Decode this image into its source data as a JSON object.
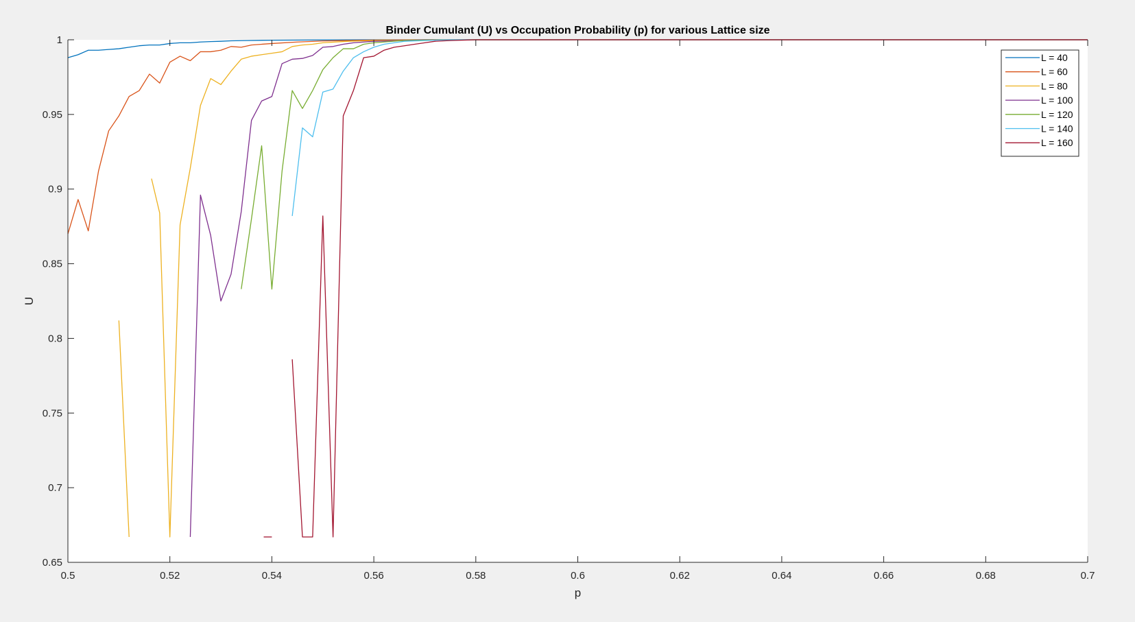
{
  "chart_data": {
    "type": "line",
    "title": "Binder Cumulant (U) vs Occupation Probability (p) for various Lattice size",
    "xlabel": "p",
    "ylabel": "U",
    "xlim": [
      0.5,
      0.7
    ],
    "ylim": [
      0.65,
      1.0
    ],
    "xticks": [
      0.5,
      0.52,
      0.54,
      0.56,
      0.58,
      0.6,
      0.62,
      0.64,
      0.66,
      0.68,
      0.7
    ],
    "xtick_labels": [
      "0.5",
      "0.52",
      "0.54",
      "0.56",
      "0.58",
      "0.6",
      "0.62",
      "0.64",
      "0.66",
      "0.68",
      "0.7"
    ],
    "yticks": [
      0.65,
      0.7,
      0.75,
      0.8,
      0.85,
      0.9,
      0.95,
      1.0
    ],
    "ytick_labels": [
      "0.65",
      "0.7",
      "0.75",
      "0.8",
      "0.85",
      "0.9",
      "0.95",
      "1"
    ],
    "grid": false,
    "legend_position": "top-right",
    "series": [
      {
        "name": "L = 40",
        "color": "#0072BD",
        "points": [
          [
            0.5,
            0.988
          ],
          [
            0.502,
            0.99
          ],
          [
            0.504,
            0.993
          ],
          [
            0.506,
            0.993
          ],
          [
            0.508,
            0.9935
          ],
          [
            0.51,
            0.994
          ],
          [
            0.512,
            0.995
          ],
          [
            0.514,
            0.996
          ],
          [
            0.516,
            0.9965
          ],
          [
            0.518,
            0.9965
          ],
          [
            0.52,
            0.9975
          ],
          [
            0.522,
            0.998
          ],
          [
            0.524,
            0.998
          ],
          [
            0.526,
            0.9985
          ],
          [
            0.528,
            0.9988
          ],
          [
            0.53,
            0.999
          ],
          [
            0.532,
            0.9993
          ],
          [
            0.535,
            0.9995
          ],
          [
            0.54,
            0.9997
          ],
          [
            0.55,
            0.9999
          ],
          [
            0.56,
            1.0
          ],
          [
            0.7,
            1.0
          ]
        ]
      },
      {
        "name": "L = 60",
        "color": "#D95319",
        "points": [
          [
            0.5,
            0.87
          ],
          [
            0.502,
            0.893
          ],
          [
            0.504,
            0.872
          ],
          [
            0.506,
            0.912
          ],
          [
            0.508,
            0.939
          ],
          [
            0.51,
            0.949
          ],
          [
            0.512,
            0.962
          ],
          [
            0.514,
            0.966
          ],
          [
            0.516,
            0.977
          ],
          [
            0.518,
            0.971
          ],
          [
            0.52,
            0.985
          ],
          [
            0.522,
            0.989
          ],
          [
            0.524,
            0.986
          ],
          [
            0.526,
            0.992
          ],
          [
            0.528,
            0.992
          ],
          [
            0.53,
            0.993
          ],
          [
            0.532,
            0.9955
          ],
          [
            0.534,
            0.995
          ],
          [
            0.536,
            0.9965
          ],
          [
            0.54,
            0.9975
          ],
          [
            0.545,
            0.9985
          ],
          [
            0.55,
            0.9992
          ],
          [
            0.56,
            0.9998
          ],
          [
            0.57,
            1.0
          ],
          [
            0.7,
            1.0
          ]
        ]
      },
      {
        "name": "L = 80",
        "color": "#EDB120",
        "segments": [
          [
            [
              0.51,
              0.812
            ],
            [
              0.512,
              0.667
            ]
          ],
          [
            [
              0.5164,
              0.907
            ],
            [
              0.518,
              0.884
            ],
            [
              0.52,
              0.667
            ],
            [
              0.522,
              0.876
            ],
            [
              0.524,
              0.914
            ],
            [
              0.526,
              0.956
            ],
            [
              0.528,
              0.974
            ],
            [
              0.53,
              0.97
            ],
            [
              0.532,
              0.979
            ],
            [
              0.534,
              0.987
            ],
            [
              0.536,
              0.989
            ],
            [
              0.538,
              0.99
            ],
            [
              0.54,
              0.991
            ],
            [
              0.542,
              0.992
            ],
            [
              0.544,
              0.9955
            ],
            [
              0.546,
              0.9965
            ],
            [
              0.548,
              0.997
            ],
            [
              0.55,
              0.998
            ],
            [
              0.555,
              0.999
            ],
            [
              0.56,
              0.9995
            ],
            [
              0.57,
              1.0
            ],
            [
              0.7,
              1.0
            ]
          ]
        ]
      },
      {
        "name": "L = 100",
        "color": "#7E2F8E",
        "segments": [
          [
            [
              0.524,
              0.667
            ],
            [
              0.526,
              0.896
            ],
            [
              0.528,
              0.869
            ],
            [
              0.53,
              0.825
            ],
            [
              0.532,
              0.843
            ],
            [
              0.534,
              0.885
            ],
            [
              0.536,
              0.946
            ],
            [
              0.538,
              0.959
            ],
            [
              0.54,
              0.962
            ],
            [
              0.542,
              0.984
            ],
            [
              0.544,
              0.987
            ],
            [
              0.546,
              0.9875
            ],
            [
              0.548,
              0.9895
            ],
            [
              0.55,
              0.995
            ],
            [
              0.552,
              0.9955
            ],
            [
              0.554,
              0.997
            ],
            [
              0.556,
              0.998
            ],
            [
              0.56,
              0.999
            ],
            [
              0.565,
              0.9995
            ],
            [
              0.57,
              1.0
            ],
            [
              0.7,
              1.0
            ]
          ]
        ]
      },
      {
        "name": "L = 120",
        "color": "#77AC30",
        "segments": [
          [
            [
              0.534,
              0.833
            ],
            [
              0.536,
              0.88
            ],
            [
              0.538,
              0.929
            ],
            [
              0.54,
              0.833
            ],
            [
              0.542,
              0.912
            ],
            [
              0.544,
              0.966
            ],
            [
              0.546,
              0.954
            ],
            [
              0.548,
              0.966
            ],
            [
              0.55,
              0.98
            ],
            [
              0.552,
              0.988
            ],
            [
              0.554,
              0.994
            ],
            [
              0.556,
              0.994
            ],
            [
              0.558,
              0.997
            ],
            [
              0.56,
              0.998
            ],
            [
              0.562,
              0.9985
            ],
            [
              0.565,
              0.9993
            ],
            [
              0.57,
              0.9998
            ],
            [
              0.575,
              1.0
            ],
            [
              0.7,
              1.0
            ]
          ]
        ]
      },
      {
        "name": "L = 140",
        "color": "#4DBEEE",
        "segments": [
          [
            [
              0.544,
              0.882
            ],
            [
              0.546,
              0.941
            ],
            [
              0.548,
              0.935
            ],
            [
              0.55,
              0.965
            ],
            [
              0.552,
              0.967
            ],
            [
              0.554,
              0.979
            ],
            [
              0.556,
              0.988
            ],
            [
              0.558,
              0.992
            ],
            [
              0.56,
              0.995
            ],
            [
              0.562,
              0.997
            ],
            [
              0.564,
              0.998
            ],
            [
              0.566,
              0.999
            ],
            [
              0.57,
              0.9995
            ],
            [
              0.575,
              1.0
            ],
            [
              0.7,
              1.0
            ]
          ]
        ]
      },
      {
        "name": "L = 160",
        "color": "#A2142F",
        "segments": [
          [
            [
              0.5384,
              0.667
            ],
            [
              0.54,
              0.667
            ]
          ],
          [
            [
              0.544,
              0.786
            ],
            [
              0.546,
              0.667
            ],
            [
              0.548,
              0.667
            ],
            [
              0.55,
              0.882
            ],
            [
              0.552,
              0.667
            ],
            [
              0.554,
              0.949
            ],
            [
              0.556,
              0.966
            ],
            [
              0.558,
              0.988
            ],
            [
              0.56,
              0.989
            ],
            [
              0.562,
              0.993
            ],
            [
              0.564,
              0.995
            ],
            [
              0.566,
              0.996
            ],
            [
              0.568,
              0.997
            ],
            [
              0.57,
              0.998
            ],
            [
              0.572,
              0.999
            ],
            [
              0.575,
              0.9995
            ],
            [
              0.58,
              1.0
            ],
            [
              0.7,
              1.0
            ]
          ]
        ]
      }
    ]
  }
}
